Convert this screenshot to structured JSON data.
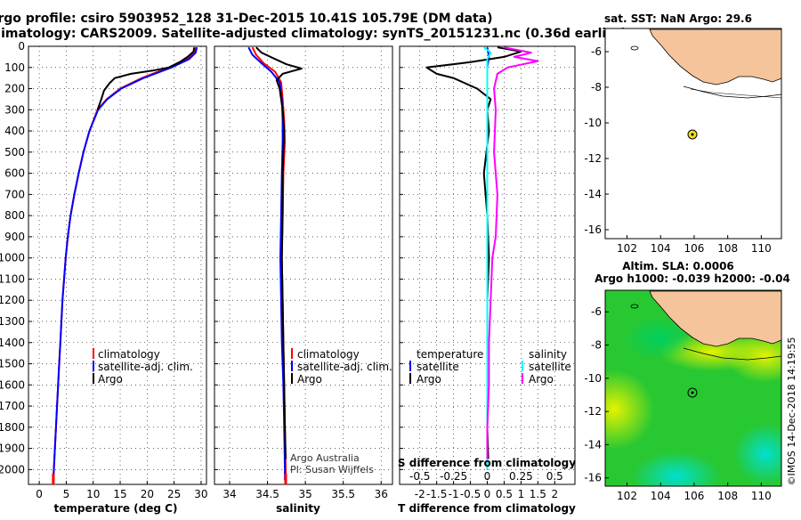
{
  "header": {
    "line1": "Argo profile: csiro 5903952_128 31-Dec-2015 10.41S 105.79E (DM data)",
    "line2": "Climatology: CARS2009. Satellite-adjusted climatology: synTS_20151231.nc (0.36d earlier)"
  },
  "colors": {
    "climatology": "#ff0000",
    "satellite": "#0000ff",
    "argo": "#000000",
    "sat_s": "#00ffff",
    "argo_s": "#ff00ff",
    "land": "#f5c49a",
    "ocean_green": "#22cc22"
  },
  "chart_data": [
    {
      "type": "line",
      "id": "temperature",
      "xlabel": "temperature (deg C)",
      "ylabel": "depth",
      "xlim": [
        -2,
        31
      ],
      "ylim": [
        2070,
        0
      ],
      "xticks": [
        0,
        5,
        10,
        15,
        20,
        25,
        30
      ],
      "yticks": [
        0,
        100,
        200,
        300,
        400,
        500,
        600,
        700,
        800,
        900,
        1000,
        1100,
        1200,
        1300,
        1400,
        1500,
        1600,
        1700,
        1800,
        1900,
        2000
      ],
      "legend": [
        "climatology",
        "satellite-adj. clim.",
        "Argo"
      ],
      "series": [
        {
          "name": "climatology",
          "color": "#ff0000",
          "points": [
            [
              29,
              5
            ],
            [
              28.8,
              30
            ],
            [
              27.5,
              60
            ],
            [
              24,
              100
            ],
            [
              19,
              150
            ],
            [
              15,
              200
            ],
            [
              12.5,
              250
            ],
            [
              10.8,
              300
            ],
            [
              9.3,
              400
            ],
            [
              8.2,
              500
            ],
            [
              7.3,
              600
            ],
            [
              6.5,
              700
            ],
            [
              5.8,
              800
            ],
            [
              5.3,
              900
            ],
            [
              4.9,
              1000
            ],
            [
              4.6,
              1100
            ],
            [
              4.3,
              1200
            ],
            [
              4.1,
              1300
            ],
            [
              3.9,
              1400
            ],
            [
              3.7,
              1500
            ],
            [
              3.5,
              1600
            ],
            [
              3.3,
              1700
            ],
            [
              3.1,
              1800
            ],
            [
              2.9,
              1900
            ],
            [
              2.7,
              2000
            ],
            [
              2.6,
              2050
            ]
          ]
        },
        {
          "name": "satellite-adj. clim.",
          "color": "#0000ff",
          "points": [
            [
              29.2,
              5
            ],
            [
              29,
              30
            ],
            [
              27.8,
              60
            ],
            [
              24.5,
              100
            ],
            [
              19.3,
              150
            ],
            [
              15.2,
              200
            ],
            [
              12.6,
              250
            ],
            [
              10.9,
              300
            ],
            [
              9.3,
              400
            ],
            [
              8.2,
              500
            ],
            [
              7.3,
              600
            ],
            [
              6.5,
              700
            ],
            [
              5.8,
              800
            ],
            [
              5.3,
              900
            ],
            [
              4.9,
              1000
            ],
            [
              4.6,
              1100
            ],
            [
              4.3,
              1200
            ],
            [
              4.1,
              1300
            ],
            [
              3.9,
              1400
            ],
            [
              3.7,
              1500
            ],
            [
              3.5,
              1600
            ],
            [
              3.3,
              1700
            ],
            [
              3.1,
              1800
            ],
            [
              2.9,
              1900
            ],
            [
              2.7,
              2000
            ],
            [
              2.6,
              2050
            ]
          ]
        },
        {
          "name": "Argo",
          "color": "#000000",
          "points": [
            [
              28.7,
              5
            ],
            [
              28.6,
              25
            ],
            [
              27.5,
              50
            ],
            [
              26,
              75
            ],
            [
              24,
              100
            ],
            [
              21,
              115
            ],
            [
              17,
              130
            ],
            [
              14,
              150
            ],
            [
              13,
              175
            ],
            [
              12,
              210
            ],
            [
              11.5,
              250
            ],
            [
              10.8,
              300
            ]
          ]
        }
      ]
    },
    {
      "type": "line",
      "id": "salinity",
      "xlabel": "salinity",
      "xlim": [
        33.8,
        36.15
      ],
      "ylim": [
        2070,
        0
      ],
      "xticks": [
        34,
        34.5,
        35,
        35.5,
        36
      ],
      "legend": [
        "climatology",
        "satellite-adj. clim.",
        "Argo"
      ],
      "annotation": [
        "Argo Australia",
        "PI: Susan Wijffels"
      ],
      "series": [
        {
          "name": "climatology",
          "color": "#ff0000",
          "points": [
            [
              34.3,
              5
            ],
            [
              34.35,
              40
            ],
            [
              34.45,
              80
            ],
            [
              34.6,
              120
            ],
            [
              34.68,
              170
            ],
            [
              34.7,
              250
            ],
            [
              34.72,
              350
            ],
            [
              34.73,
              450
            ],
            [
              34.71,
              600
            ],
            [
              34.7,
              800
            ],
            [
              34.69,
              1000
            ],
            [
              34.7,
              1200
            ],
            [
              34.71,
              1400
            ],
            [
              34.72,
              1600
            ],
            [
              34.73,
              1800
            ],
            [
              34.74,
              2000
            ],
            [
              34.74,
              2050
            ]
          ]
        },
        {
          "name": "satellite-adj. clim.",
          "color": "#0000ff",
          "points": [
            [
              34.25,
              5
            ],
            [
              34.3,
              40
            ],
            [
              34.42,
              80
            ],
            [
              34.55,
              120
            ],
            [
              34.66,
              170
            ],
            [
              34.69,
              250
            ],
            [
              34.7,
              350
            ],
            [
              34.7,
              450
            ],
            [
              34.69,
              600
            ],
            [
              34.68,
              800
            ],
            [
              34.67,
              1000
            ],
            [
              34.68,
              1200
            ],
            [
              34.69,
              1400
            ],
            [
              34.71,
              1600
            ],
            [
              34.72,
              1800
            ],
            [
              34.73,
              2000
            ],
            [
              34.73,
              2050
            ]
          ]
        },
        {
          "name": "Argo",
          "color": "#000000",
          "points": [
            [
              34.35,
              5
            ],
            [
              34.42,
              30
            ],
            [
              34.6,
              60
            ],
            [
              34.75,
              85
            ],
            [
              34.95,
              105
            ],
            [
              34.85,
              115
            ],
            [
              34.7,
              130
            ],
            [
              34.62,
              160
            ],
            [
              34.66,
              200
            ],
            [
              34.7,
              300
            ],
            [
              34.72,
              400
            ],
            [
              34.71,
              500
            ],
            [
              34.7,
              600
            ],
            [
              34.7,
              800
            ],
            [
              34.69,
              1000
            ],
            [
              34.7,
              1200
            ],
            [
              34.71,
              1400
            ],
            [
              34.72,
              1600
            ],
            [
              34.73,
              1800
            ],
            [
              34.74,
              1950
            ]
          ]
        }
      ]
    },
    {
      "type": "line",
      "id": "difference",
      "xlabel": "T difference from climatology",
      "top_xlabel": "S difference from climatology",
      "xlim": [
        -2.6,
        2.6
      ],
      "ylim": [
        2070,
        0
      ],
      "xticks": [
        -2,
        -1.5,
        -1,
        -0.5,
        0,
        0.5,
        1,
        1.5,
        2
      ],
      "xtick_labels": [
        "-2",
        "-1.5",
        "-1",
        "-0.5",
        "0",
        "0.5",
        "1",
        "1.5",
        "2"
      ],
      "top_xticks": [
        -0.5,
        -0.25,
        0,
        0.25,
        0.5
      ],
      "top_xtick_labels": [
        "-0.5",
        "-0.25",
        "0",
        "0.25",
        "0.5"
      ],
      "legend_left_title": "temperature",
      "legend_right_title": "salinity",
      "legend_left": [
        "satellite",
        "Argo"
      ],
      "legend_right": [
        "satellite",
        "Argo"
      ],
      "series": [
        {
          "name": "T satellite",
          "color": "#0000ff",
          "points": [
            [
              0,
              5
            ],
            [
              0.05,
              50
            ],
            [
              0,
              100
            ],
            [
              0,
              200
            ],
            [
              0,
              400
            ],
            [
              0,
              800
            ],
            [
              0,
              1200
            ],
            [
              0,
              1600
            ],
            [
              0,
              2000
            ]
          ]
        },
        {
          "name": "T Argo",
          "color": "#000000",
          "points": [
            [
              0.3,
              5
            ],
            [
              1,
              25
            ],
            [
              0.5,
              50
            ],
            [
              -0.5,
              75
            ],
            [
              -1.8,
              100
            ],
            [
              -1.5,
              130
            ],
            [
              -1,
              150
            ],
            [
              -0.3,
              200
            ],
            [
              0.1,
              250
            ],
            [
              0,
              300
            ],
            [
              0.05,
              400
            ],
            [
              -0.1,
              600
            ],
            [
              0,
              800
            ],
            [
              0.05,
              1000
            ],
            [
              0,
              1200
            ],
            [
              0,
              1400
            ],
            [
              0.02,
              1600
            ],
            [
              0,
              1800
            ],
            [
              0.03,
              1950
            ]
          ]
        },
        {
          "name": "S satellite",
          "color": "#00ffff",
          "points": [
            [
              -0.1,
              5
            ],
            [
              0.1,
              30
            ],
            [
              0,
              60
            ],
            [
              0,
              100
            ],
            [
              0,
              200
            ],
            [
              0,
              400
            ],
            [
              0,
              800
            ],
            [
              0,
              1200
            ],
            [
              0,
              1600
            ],
            [
              0,
              2000
            ]
          ]
        },
        {
          "name": "S Argo",
          "color": "#ff00ff",
          "points": [
            [
              0.5,
              5
            ],
            [
              1.3,
              30
            ],
            [
              0.8,
              50
            ],
            [
              1.5,
              70
            ],
            [
              0.6,
              100
            ],
            [
              0.3,
              130
            ],
            [
              0.2,
              200
            ],
            [
              0.25,
              300
            ],
            [
              0.2,
              500
            ],
            [
              0.3,
              700
            ],
            [
              0.25,
              900
            ],
            [
              0.15,
              1000
            ],
            [
              0.1,
              1200
            ],
            [
              0.05,
              1400
            ],
            [
              0.05,
              1600
            ],
            [
              0,
              1800
            ],
            [
              0,
              1950
            ]
          ]
        }
      ]
    }
  ],
  "sst_map": {
    "title": "sat. SST: NaN Argo: 29.6",
    "xticks": [
      102,
      104,
      106,
      108,
      110
    ],
    "yticks": [
      -6,
      -8,
      -10,
      -12,
      -14,
      -16
    ],
    "lon_range": [
      100.7,
      111.2
    ],
    "lat_range": [
      -16.5,
      -4.7
    ],
    "float": {
      "lon": 105.79,
      "lat": -10.41
    }
  },
  "sla_map": {
    "title1": "Altim. SLA: 0.0006",
    "title2": "Argo h1000: -0.039 h2000: -0.04",
    "xticks": [
      102,
      104,
      106,
      108,
      110
    ],
    "yticks": [
      -6,
      -8,
      -10,
      -12,
      -14,
      -16
    ],
    "lon_range": [
      100.7,
      111.2
    ],
    "lat_range": [
      -16.5,
      -4.7
    ],
    "float": {
      "lon": 105.79,
      "lat": -10.41
    }
  },
  "credit": "©IMOS 14-Dec-2018 14:19:55"
}
